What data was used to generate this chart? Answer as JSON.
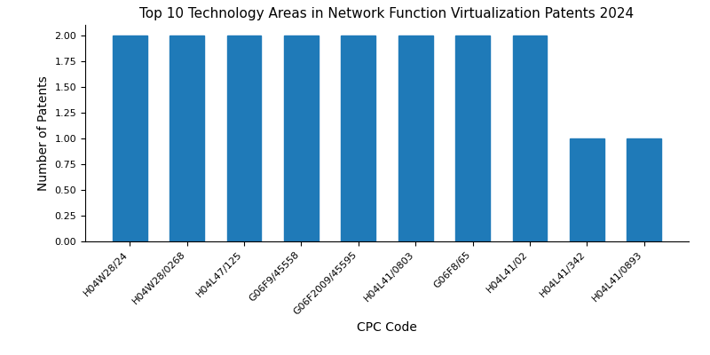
{
  "title": "Top 10 Technology Areas in Network Function Virtualization Patents 2024",
  "xlabel": "CPC Code",
  "ylabel": "Number of Patents",
  "categories": [
    "H04W28/24",
    "H04W28/0268",
    "H04L47/125",
    "G06F9/45558",
    "G06F2009/45595",
    "H04L41/0803",
    "G06F8/65",
    "H04L41/02",
    "H04L41/342",
    "H04L41/0893"
  ],
  "values": [
    2,
    2,
    2,
    2,
    2,
    2,
    2,
    2,
    1,
    1
  ],
  "bar_color": "#1f7ab8",
  "ylim": [
    0,
    2.1
  ],
  "yticks": [
    0.0,
    0.25,
    0.5,
    0.75,
    1.0,
    1.25,
    1.5,
    1.75,
    2.0
  ],
  "figsize": [
    8.0,
    4.0
  ],
  "dpi": 100,
  "bar_width": 0.6,
  "title_fontsize": 11,
  "axis_label_fontsize": 10,
  "tick_fontsize": 8
}
